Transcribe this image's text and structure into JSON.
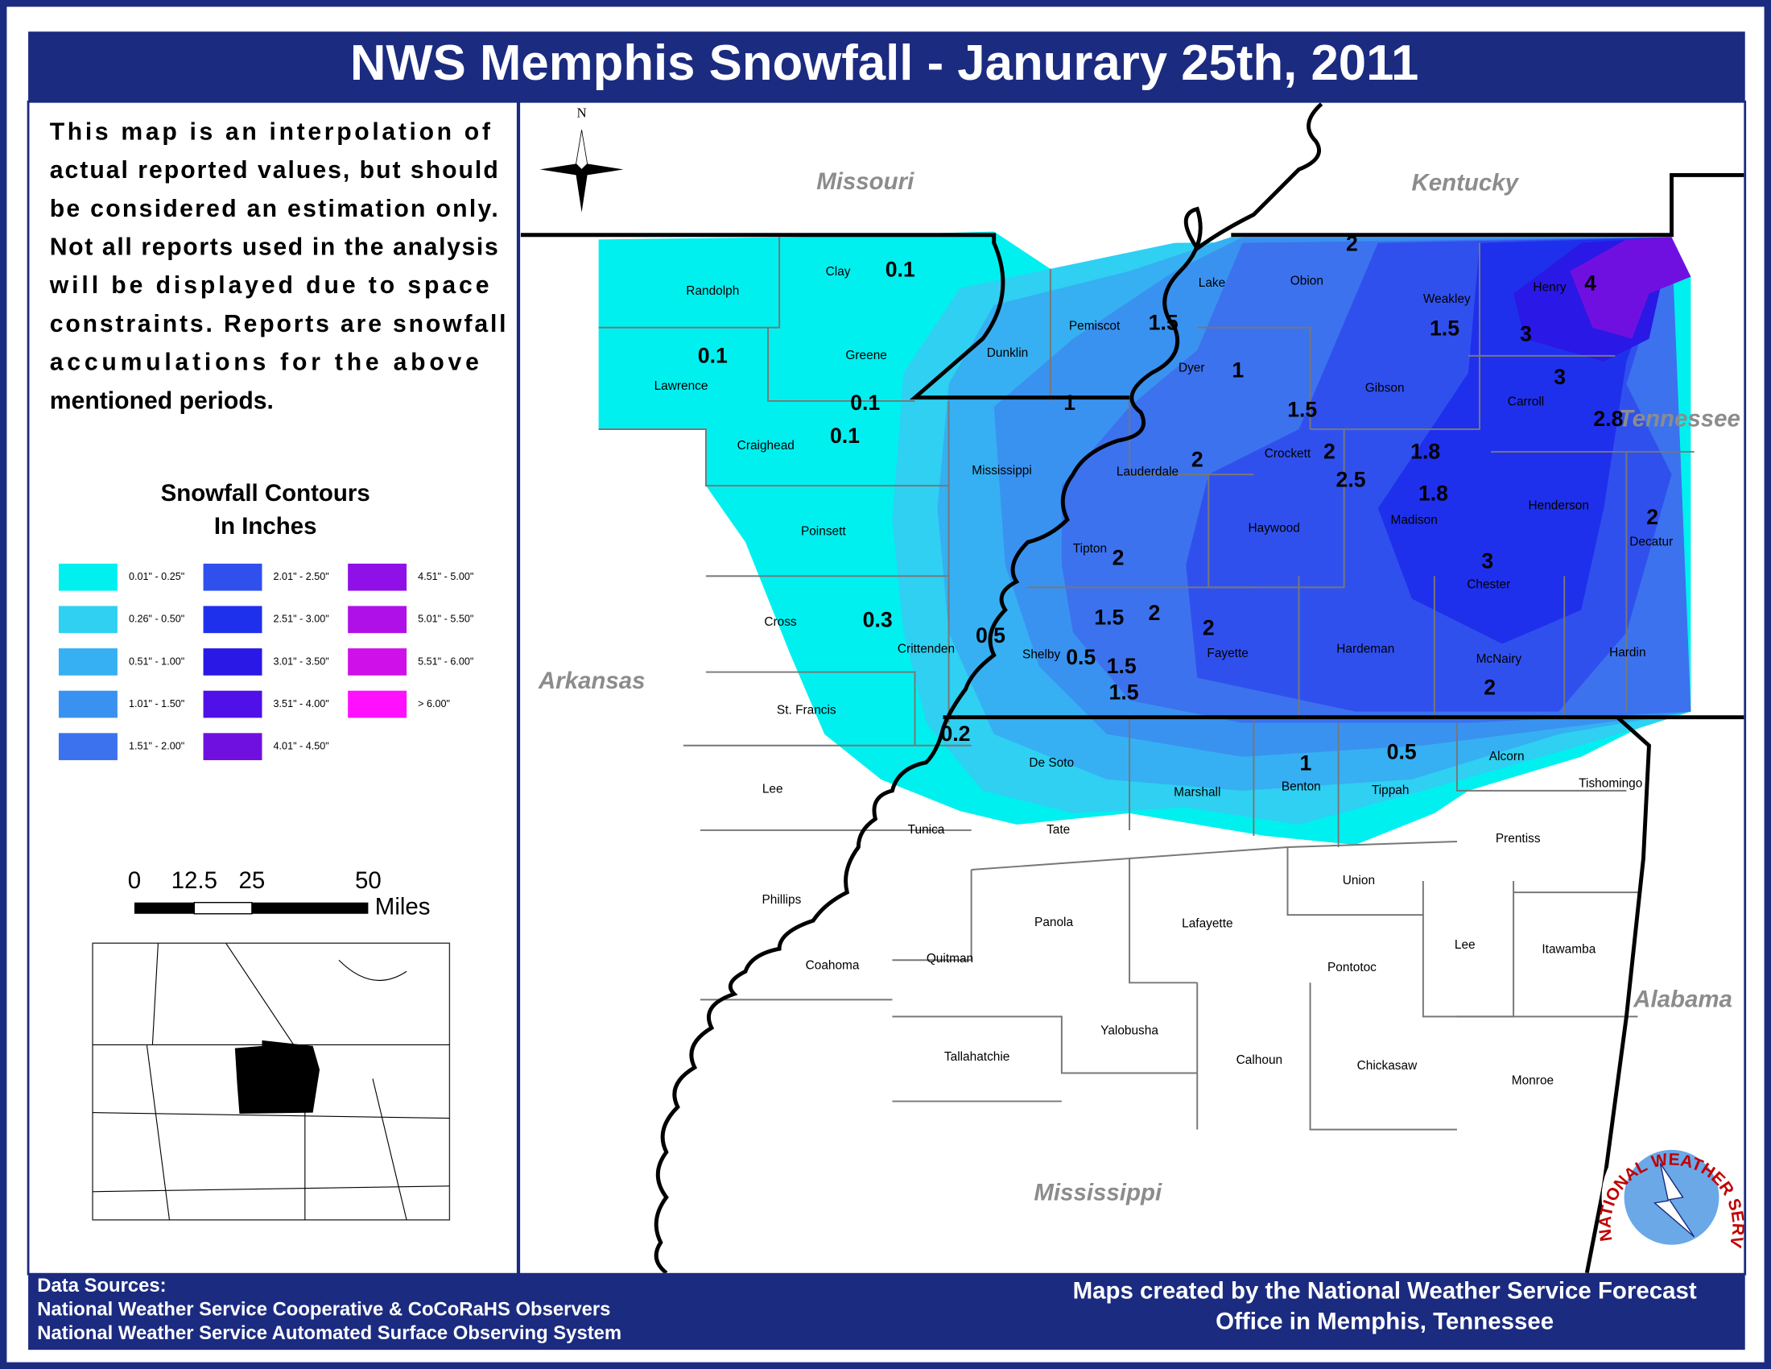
{
  "header": {
    "title": "NWS Memphis Snowfall - Janurary 25th, 2011"
  },
  "description": {
    "lines": [
      "This map is an interpolation of",
      "actual reported values, but should",
      "be considered an estimation only.",
      "Not all reports used in the analysis",
      "will be displayed due to space",
      "constraints. Reports are snowfall",
      "accumulations for the above",
      "mentioned periods."
    ]
  },
  "legend": {
    "title": [
      "Snowfall Contours",
      "In Inches"
    ],
    "items": [
      {
        "label": "0.01\" - 0.25\"",
        "color": "#00f0f0"
      },
      {
        "label": "0.26\" - 0.50\"",
        "color": "#2fd0f2"
      },
      {
        "label": "0.51\" - 1.00\"",
        "color": "#36b0f2"
      },
      {
        "label": "1.01\" - 1.50\"",
        "color": "#3a92f0"
      },
      {
        "label": "1.51\" - 2.00\"",
        "color": "#3c72ee"
      },
      {
        "label": "2.01\" - 2.50\"",
        "color": "#3050ee"
      },
      {
        "label": "2.51\" - 3.00\"",
        "color": "#1f30ec"
      },
      {
        "label": "3.01\" - 3.50\"",
        "color": "#2a18e6"
      },
      {
        "label": "3.51\" - 4.00\"",
        "color": "#5010e8"
      },
      {
        "label": "4.01\" - 4.50\"",
        "color": "#7010e0"
      },
      {
        "label": "4.51\" - 5.00\"",
        "color": "#9010e8"
      },
      {
        "label": "5.01\" - 5.50\"",
        "color": "#b010e8"
      },
      {
        "label": "5.51\" - 6.00\"",
        "color": "#d010e8"
      },
      {
        "label": "> 6.00\"",
        "color": "#ff10ff"
      }
    ]
  },
  "scale": {
    "labels": [
      "0",
      "12.5",
      "25",
      "50"
    ],
    "unit": "Miles"
  },
  "map": {
    "compass": "N",
    "states": [
      "Missouri",
      "Kentucky",
      "Tennessee",
      "Arkansas",
      "Alabama",
      "Mississippi"
    ],
    "counties": [
      "Randolph",
      "Clay",
      "Lawrence",
      "Greene",
      "Dunklin",
      "Pemiscot",
      "Lake",
      "Obion",
      "Weakley",
      "Henry",
      "Dyer",
      "Gibson",
      "Carroll",
      "Craighead",
      "Mississippi",
      "Lauderdale",
      "Crockett",
      "Madison",
      "Henderson",
      "Haywood",
      "Tipton",
      "Decatur",
      "Poinsett",
      "Chester",
      "Cross",
      "Crittenden",
      "Shelby",
      "Fayette",
      "Hardeman",
      "McNairy",
      "Hardin",
      "St. Francis",
      "De Soto",
      "Marshall",
      "Benton",
      "Tippah",
      "Alcorn",
      "Tishomingo",
      "Lee",
      "Tunica",
      "Tate",
      "Prentiss",
      "Union",
      "Phillips",
      "Panola",
      "Lafayette",
      "Lee",
      "Itawamba",
      "Quitman",
      "Coahoma",
      "Pontotoc",
      "Yalobusha",
      "Tallahatchie",
      "Calhoun",
      "Chickasaw",
      "Monroe"
    ],
    "reports": [
      "0.1",
      "0.1",
      "0.1",
      "0.1",
      "1.5",
      "1",
      "2",
      "4",
      "1.5",
      "3",
      "3",
      "1",
      "1.5",
      "2.8",
      "2",
      "2",
      "1.8",
      "2.5",
      "1.8",
      "2",
      "2",
      "3",
      "0.3",
      "1.5",
      "2",
      "2",
      "0.5",
      "0.5",
      "1.5",
      "1.5",
      "2",
      "0.2",
      "1",
      "0.5"
    ]
  },
  "footer": {
    "sources": [
      "Data Sources:",
      "National Weather Service Cooperative & CoCoRaHS Observers",
      "National Weather Service Automated Surface Observing System"
    ],
    "credit": [
      "Maps created by the National Weather Service Forecast",
      "Office in Memphis, Tennessee"
    ]
  },
  "logo": {
    "text": "NATIONAL WEATHER SERVICE"
  }
}
